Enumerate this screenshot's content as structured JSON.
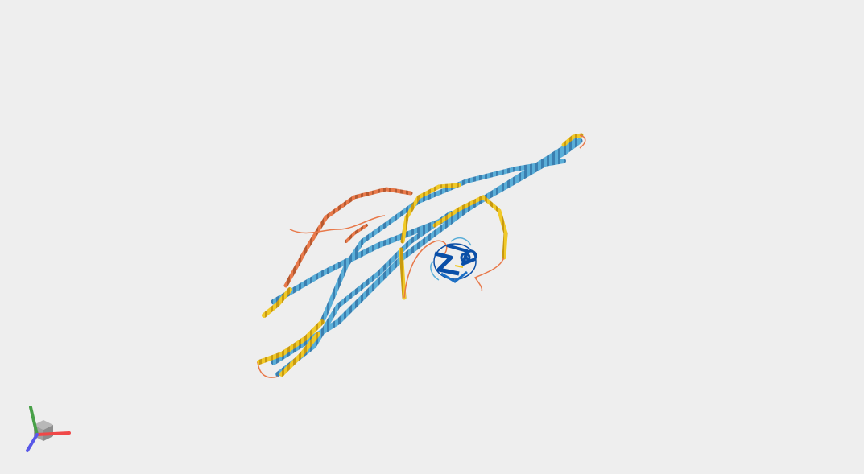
{
  "viewer": {
    "background": "#eeeeee",
    "confidence_colors": {
      "very_high": "#0a4fa8",
      "confident": "#5aaed8",
      "low": "#f0c928",
      "very_low": "#e8794a"
    },
    "axes_colors": {
      "x": "#f04848",
      "y": "#48a048",
      "z": "#5858e8"
    }
  }
}
